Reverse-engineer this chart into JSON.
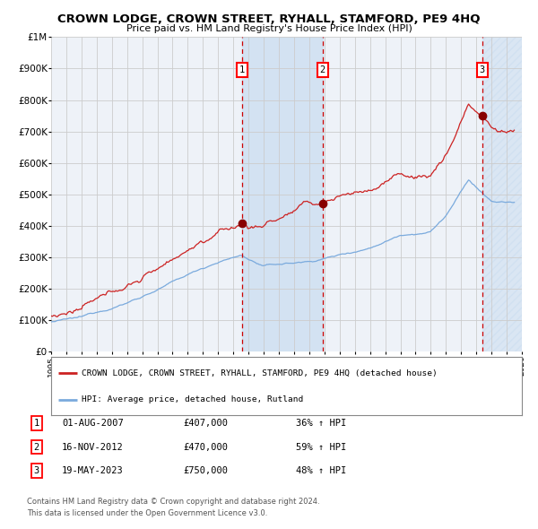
{
  "title": "CROWN LODGE, CROWN STREET, RYHALL, STAMFORD, PE9 4HQ",
  "subtitle": "Price paid vs. HM Land Registry's House Price Index (HPI)",
  "hpi_color": "#7aaadd",
  "price_color": "#cc2222",
  "dot_color": "#880000",
  "bg_color": "#ffffff",
  "grid_color": "#cccccc",
  "plot_bg": "#eef2f8",
  "sale1_date": 2007.583,
  "sale1_price": 407000,
  "sale1_label": "1",
  "sale1_display": "01-AUG-2007",
  "sale1_pct": "36%",
  "sale2_date": 2012.875,
  "sale2_price": 470000,
  "sale2_label": "2",
  "sale2_display": "16-NOV-2012",
  "sale2_pct": "59%",
  "sale3_date": 2023.375,
  "sale3_price": 750000,
  "sale3_label": "3",
  "sale3_display": "19-MAY-2023",
  "sale3_pct": "48%",
  "xmin": 1995.0,
  "xmax": 2026.0,
  "ymin": 0,
  "ymax": 1000000,
  "legend_line1": "CROWN LODGE, CROWN STREET, RYHALL, STAMFORD, PE9 4HQ (detached house)",
  "legend_line2": "HPI: Average price, detached house, Rutland",
  "footer1": "Contains HM Land Registry data © Crown copyright and database right 2024.",
  "footer2": "This data is licensed under the Open Government Licence v3.0."
}
